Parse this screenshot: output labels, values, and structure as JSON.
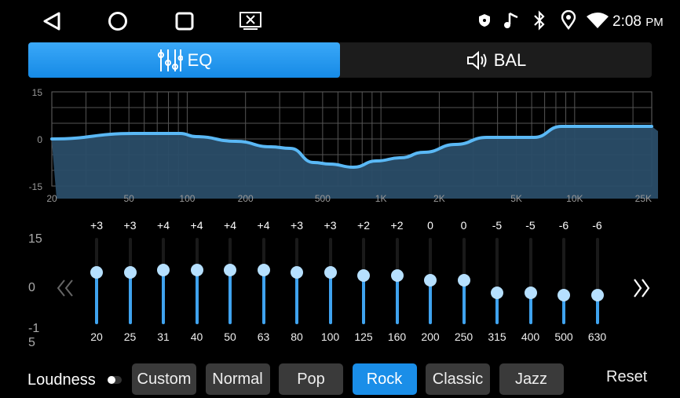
{
  "status_bar": {
    "time": "2:08",
    "ampm": "PM",
    "icons": [
      "shield-icon",
      "music-note-icon",
      "bluetooth-icon",
      "location-icon",
      "wifi-icon"
    ]
  },
  "nav_bar": {
    "icons": [
      "back-icon",
      "home-icon",
      "recents-icon",
      "screen-mirror-icon"
    ]
  },
  "tabs": [
    {
      "label": "EQ",
      "icon": "equalizer-sliders-icon",
      "active": true
    },
    {
      "label": "BAL",
      "icon": "speaker-icon",
      "active": false
    }
  ],
  "colors": {
    "accent": "#1a8ee8",
    "curve": "#5ab8f5",
    "fill": "#2a4d68",
    "thumb": "#b6e0ff"
  },
  "chart_data": {
    "type": "area",
    "x_scale": "log",
    "xlim": [
      20,
      25000
    ],
    "ylim": [
      -15,
      15
    ],
    "y_ticks": [
      "15",
      "0",
      "-15"
    ],
    "x_ticks": [
      {
        "v": 20,
        "l": "20"
      },
      {
        "v": 50,
        "l": "50"
      },
      {
        "v": 100,
        "l": "100"
      },
      {
        "v": 200,
        "l": "200"
      },
      {
        "v": 500,
        "l": "500"
      },
      {
        "v": 1000,
        "l": "1K"
      },
      {
        "v": 2000,
        "l": "2K"
      },
      {
        "v": 5000,
        "l": "5K"
      },
      {
        "v": 10000,
        "l": "10K"
      },
      {
        "v": 25000,
        "l": "25K"
      }
    ],
    "grid": true,
    "curve": [
      [
        20,
        0
      ],
      [
        53,
        1.75
      ],
      [
        92,
        1.75
      ],
      [
        111,
        0.75
      ],
      [
        178,
        -0.75
      ],
      [
        270,
        -2.5
      ],
      [
        340,
        -3
      ],
      [
        450,
        -7.5
      ],
      [
        545,
        -8
      ],
      [
        720,
        -9
      ],
      [
        950,
        -7
      ],
      [
        1260,
        -6
      ],
      [
        1670,
        -4.25
      ],
      [
        2430,
        -1.75
      ],
      [
        3520,
        0.5
      ],
      [
        6170,
        0.5
      ],
      [
        8550,
        4
      ],
      [
        25000,
        4
      ]
    ]
  },
  "sliders": {
    "y_labels": [
      "15",
      "0",
      "-1\n5"
    ],
    "bands": [
      {
        "freq": "20",
        "label": "+3",
        "value": 3
      },
      {
        "freq": "25",
        "label": "+3",
        "value": 3
      },
      {
        "freq": "31",
        "label": "+4",
        "value": 4
      },
      {
        "freq": "40",
        "label": "+4",
        "value": 4
      },
      {
        "freq": "50",
        "label": "+4",
        "value": 4
      },
      {
        "freq": "63",
        "label": "+4",
        "value": 4
      },
      {
        "freq": "80",
        "label": "+3",
        "value": 3
      },
      {
        "freq": "100",
        "label": "+3",
        "value": 3
      },
      {
        "freq": "125",
        "label": "+2",
        "value": 2
      },
      {
        "freq": "160",
        "label": "+2",
        "value": 2
      },
      {
        "freq": "200",
        "label": "0",
        "value": 0
      },
      {
        "freq": "250",
        "label": "0",
        "value": 0
      },
      {
        "freq": "315",
        "label": "-5",
        "value": -5
      },
      {
        "freq": "400",
        "label": "-5",
        "value": -5
      },
      {
        "freq": "500",
        "label": "-6",
        "value": -6
      },
      {
        "freq": "630",
        "label": "-6",
        "value": -6
      }
    ],
    "prev_icon": "chevron-double-left-icon",
    "next_icon": "chevron-double-right-icon"
  },
  "bottom": {
    "loudness_label": "Loudness",
    "loudness_on": false,
    "presets": [
      {
        "label": "Custom"
      },
      {
        "label": "Normal"
      },
      {
        "label": "Pop"
      },
      {
        "label": "Rock",
        "active": true
      },
      {
        "label": "Classic"
      },
      {
        "label": "Jazz"
      }
    ],
    "reset_label": "Reset"
  }
}
